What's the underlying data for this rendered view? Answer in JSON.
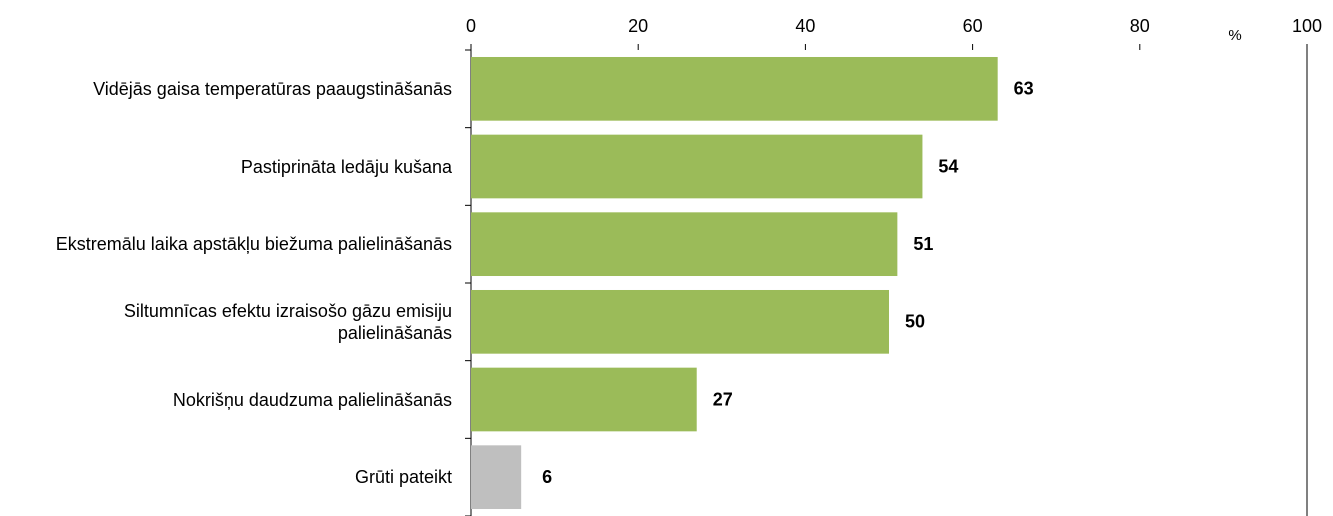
{
  "chart_data": {
    "type": "bar",
    "orientation": "horizontal",
    "unit_label": "%",
    "categories": [
      "Vidējās gaisa temperatūras paaugstināšanās",
      "Pastiprināta ledāju kušana",
      "Ekstremālu laika apstākļu biežuma palielināšanās",
      "Siltumnīcas efektu izraisošo gāzu emisiju palielināšanās",
      "Nokrišņu daudzuma palielināšanās",
      "Grūti pateikt"
    ],
    "values": [
      63,
      54,
      51,
      50,
      27,
      6
    ],
    "colors": [
      "#9bbb59",
      "#9bbb59",
      "#9bbb59",
      "#9bbb59",
      "#9bbb59",
      "#bfbfbf"
    ],
    "xlim": [
      0,
      100
    ],
    "xticks": [
      0,
      20,
      40,
      60,
      80,
      100
    ],
    "xaxis_position": "top",
    "grid": false
  }
}
